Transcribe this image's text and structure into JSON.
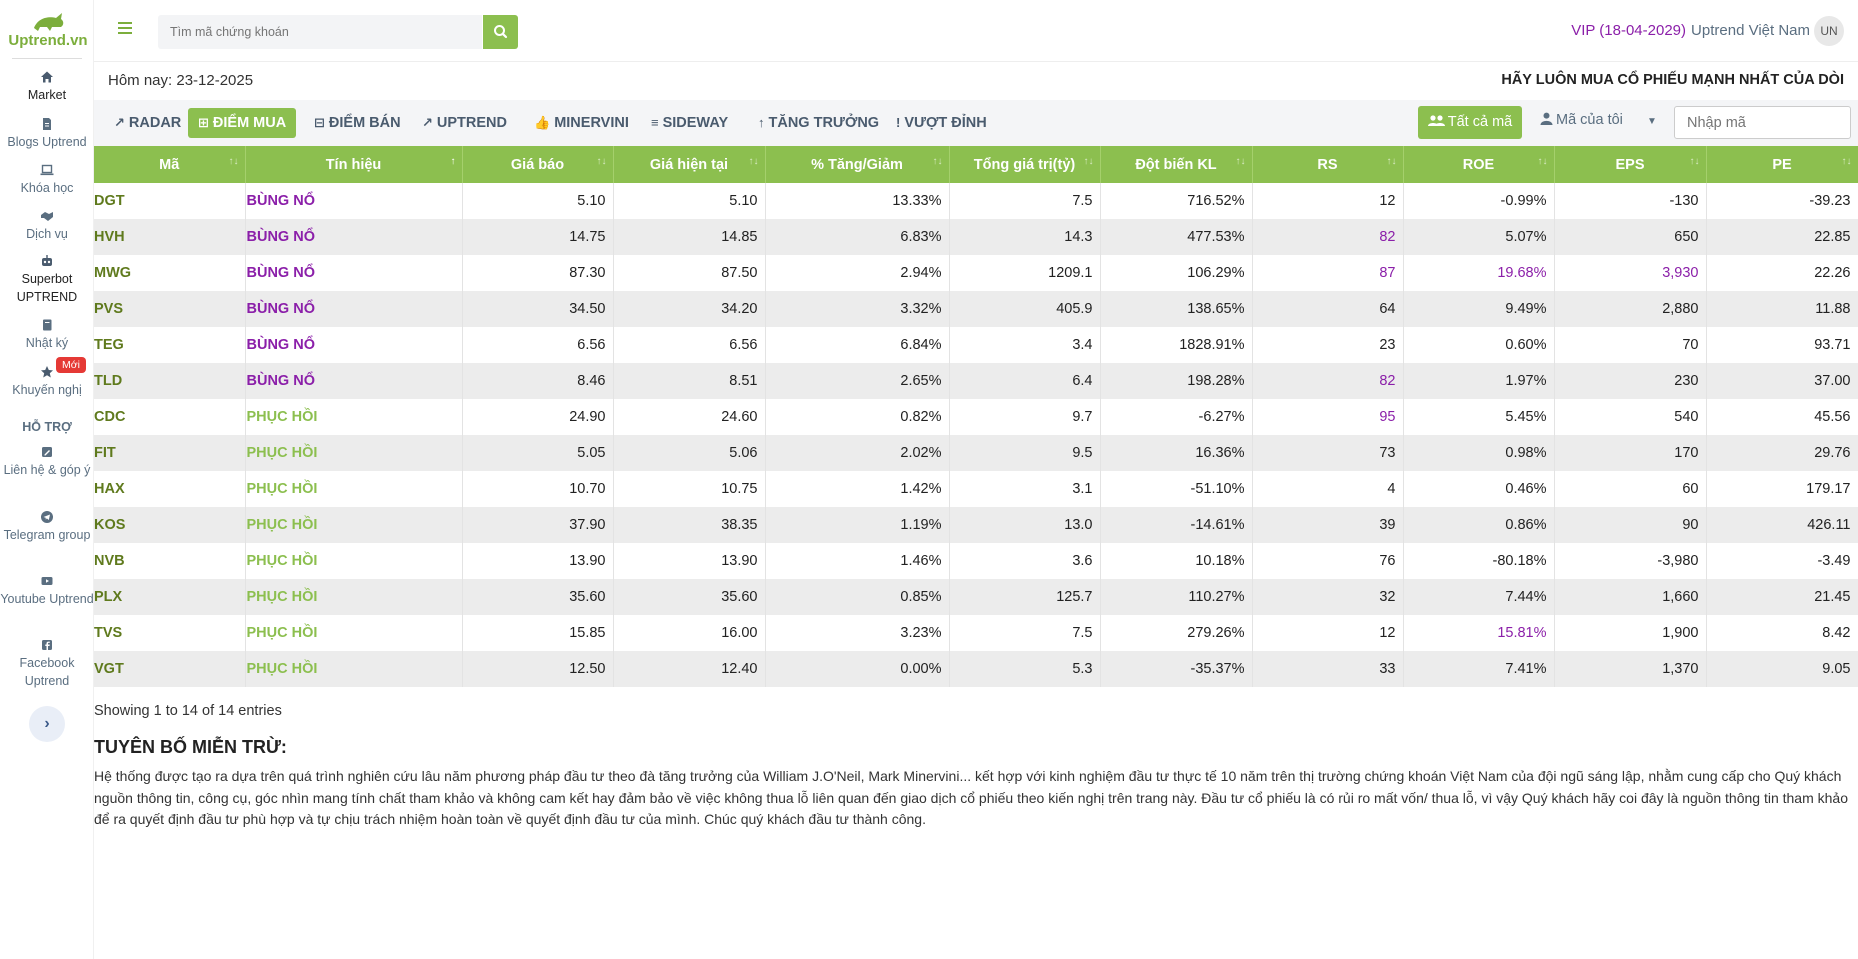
{
  "app": {
    "logo_text": "Uptrend.vn"
  },
  "sidebar": {
    "items": [
      {
        "label": "Market",
        "icon": "home-icon"
      },
      {
        "label": "Blogs Uptrend",
        "icon": "file-icon"
      },
      {
        "label": "Khóa học",
        "icon": "laptop-icon"
      },
      {
        "label": "Dịch vụ",
        "icon": "handshake-icon"
      },
      {
        "label": "Superbot UPTREND",
        "icon": "robot-icon"
      },
      {
        "label": "Nhật ký",
        "icon": "book-icon"
      },
      {
        "label": "Khuyến nghị",
        "icon": "star-icon",
        "badge": "Mới"
      }
    ],
    "support_title": "HỖ TRỢ",
    "support_items": [
      {
        "label": "Liên hệ & góp ý",
        "icon": "edit-icon"
      },
      {
        "label": "Telegram group",
        "icon": "telegram-icon"
      },
      {
        "label": "Youtube Uptrend",
        "icon": "youtube-icon"
      },
      {
        "label": "Facebook Uptrend",
        "icon": "facebook-icon"
      }
    ]
  },
  "header": {
    "search_placeholder": "Tìm mã chứng khoán",
    "vip": "VIP (18-04-2029)",
    "user_name": "Uptrend Việt Nam",
    "avatar": "UN"
  },
  "today": "Hôm nay: 23-12-2025",
  "slogan": "HÃY LUÔN MUA CỔ PHIẾU MẠNH NHẤT CỦA DÒI",
  "tabs": [
    {
      "label": "RADAR",
      "icon": "↗"
    },
    {
      "label": "ĐIỂM MUA",
      "icon": "⊞"
    },
    {
      "label": "ĐIỂM BÁN",
      "icon": "⊟"
    },
    {
      "label": "UPTREND",
      "icon": "↗"
    },
    {
      "label": "MINERVINI",
      "icon": "👍"
    },
    {
      "label": "SIDEWAY",
      "icon": "≡"
    },
    {
      "label": "TĂNG TRƯỞNG",
      "icon": "↑"
    },
    {
      "label": "VƯỢT ĐỈNH",
      "icon": "!"
    }
  ],
  "filters": {
    "all_codes": "Tất cả mã",
    "my_codes": "Mã của tôi",
    "code_placeholder": "Nhập mã"
  },
  "table": {
    "columns": [
      "Mã",
      "Tín hiệu",
      "Giá báo",
      "Giá hiện tại",
      "% Tăng/Giảm",
      "Tổng giá trị(tỷ)",
      "Đột biến KL",
      "RS",
      "ROE",
      "EPS",
      "PE"
    ],
    "rows": [
      [
        "DGT",
        "BÙNG NỔ",
        "5.10",
        "5.10",
        "13.33%",
        "7.5",
        "716.52%",
        "12",
        "-0.99%",
        "-130",
        "-39.23"
      ],
      [
        "HVH",
        "BÙNG NỔ",
        "14.75",
        "14.85",
        "6.83%",
        "14.3",
        "477.53%",
        "82",
        "5.07%",
        "650",
        "22.85"
      ],
      [
        "MWG",
        "BÙNG NỔ",
        "87.30",
        "87.50",
        "2.94%",
        "1209.1",
        "106.29%",
        "87",
        "19.68%",
        "3,930",
        "22.26"
      ],
      [
        "PVS",
        "BÙNG NỔ",
        "34.50",
        "34.20",
        "3.32%",
        "405.9",
        "138.65%",
        "64",
        "9.49%",
        "2,880",
        "11.88"
      ],
      [
        "TEG",
        "BÙNG NỔ",
        "6.56",
        "6.56",
        "6.84%",
        "3.4",
        "1828.91%",
        "23",
        "0.60%",
        "70",
        "93.71"
      ],
      [
        "TLD",
        "BÙNG NỔ",
        "8.46",
        "8.51",
        "2.65%",
        "6.4",
        "198.28%",
        "82",
        "1.97%",
        "230",
        "37.00"
      ],
      [
        "CDC",
        "PHỤC HỒI",
        "24.90",
        "24.60",
        "0.82%",
        "9.7",
        "-6.27%",
        "95",
        "5.45%",
        "540",
        "45.56"
      ],
      [
        "FIT",
        "PHỤC HỒI",
        "5.05",
        "5.06",
        "2.02%",
        "9.5",
        "16.36%",
        "73",
        "0.98%",
        "170",
        "29.76"
      ],
      [
        "HAX",
        "PHỤC HỒI",
        "10.70",
        "10.75",
        "1.42%",
        "3.1",
        "-51.10%",
        "4",
        "0.46%",
        "60",
        "179.17"
      ],
      [
        "KOS",
        "PHỤC HỒI",
        "37.90",
        "38.35",
        "1.19%",
        "13.0",
        "-14.61%",
        "39",
        "0.86%",
        "90",
        "426.11"
      ],
      [
        "NVB",
        "PHỤC HỒI",
        "13.90",
        "13.90",
        "1.46%",
        "3.6",
        "10.18%",
        "76",
        "-80.18%",
        "-3,980",
        "-3.49"
      ],
      [
        "PLX",
        "PHỤC HỒI",
        "35.60",
        "35.60",
        "0.85%",
        "125.7",
        "110.27%",
        "32",
        "7.44%",
        "1,660",
        "21.45"
      ],
      [
        "TVS",
        "PHỤC HỒI",
        "15.85",
        "16.00",
        "3.23%",
        "7.5",
        "279.26%",
        "12",
        "15.81%",
        "1,900",
        "8.42"
      ],
      [
        "VGT",
        "PHỤC HỒI",
        "12.50",
        "12.40",
        "0.00%",
        "5.3",
        "-35.37%",
        "33",
        "7.41%",
        "1,370",
        "9.05"
      ]
    ],
    "highlight": {
      "rs_purple": [
        "82",
        "87",
        "95"
      ],
      "roe_purple": [
        "19.68%",
        "15.81%"
      ],
      "eps_purple": [
        "3,930"
      ]
    },
    "footer": "Showing 1 to 14 of 14 entries"
  },
  "disclaimer": {
    "title": "TUYÊN BỐ MIỄN TRỪ:",
    "text": "Hệ thống được tạo ra dựa trên quá trình nghiên cứu lâu năm phương pháp đầu tư theo đà tăng trưởng của William J.O'Neil, Mark Minervini... kết hợp với kinh nghiệm đầu tư thực tế 10 năm trên thị trường chứng khoán Việt Nam của đội ngũ sáng lập, nhằm cung cấp cho Quý khách nguồn thông tin, công cụ, góc nhìn mang tính chất tham khảo và không cam kết hay đảm bảo về việc không thua lỗ liên quan đến giao dịch cổ phiếu theo kiến nghị trên trang này. Đầu tư cổ phiếu là có rủi ro mất vốn/ thua lỗ, vì vậy Quý khách hãy coi đây là nguồn thông tin tham khảo để ra quyết định đầu tư phù hợp và tự chịu trách nhiệm hoàn toàn về quyết định đầu tư của mình. Chúc quý khách đầu tư thành công."
  },
  "colors": {
    "accent": "#8cbf4f",
    "purple": "#8b1fa9",
    "code_green": "#5f7a1d"
  }
}
